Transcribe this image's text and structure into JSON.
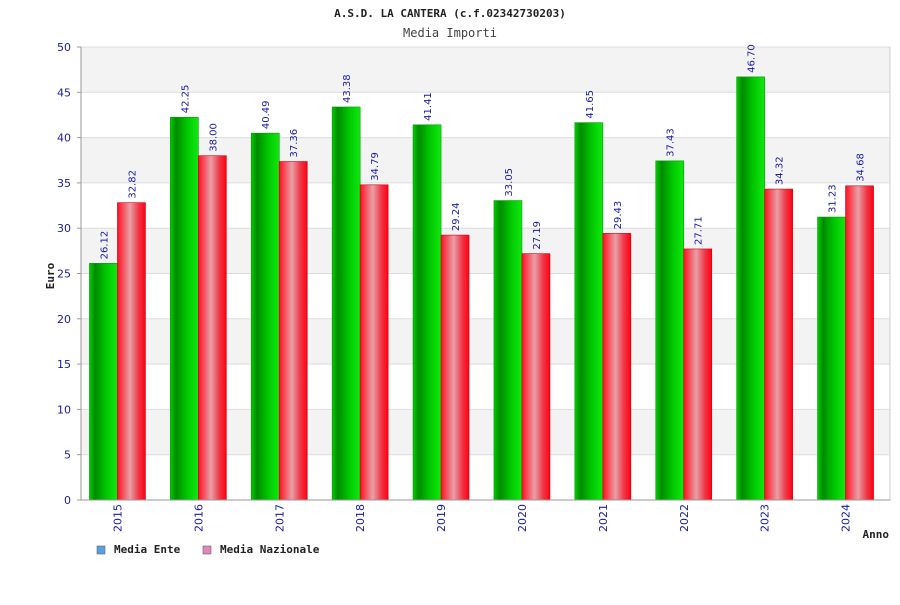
{
  "chart_data": {
    "type": "bar",
    "title": "A.S.D. LA CANTERA (c.f.02342730203)",
    "subtitle": "Media Importi",
    "xlabel": "Anno",
    "ylabel": "Euro",
    "ylim": [
      0,
      50
    ],
    "yticks": [
      0,
      5,
      10,
      15,
      20,
      25,
      30,
      35,
      40,
      45,
      50
    ],
    "categories": [
      "2015",
      "2016",
      "2017",
      "2018",
      "2019",
      "2020",
      "2021",
      "2022",
      "2023",
      "2024"
    ],
    "series": [
      {
        "name": "Media Ente",
        "values": [
          26.12,
          42.25,
          40.49,
          43.38,
          41.41,
          33.05,
          41.65,
          37.43,
          46.7,
          31.23
        ],
        "labels": [
          "26.12",
          "42.25",
          "40.49",
          "43.38",
          "41.41",
          "33.05",
          "41.65",
          "37.43",
          "46.70",
          "31.23"
        ],
        "color": "#00b400",
        "legend_color": "#5aa0e0"
      },
      {
        "name": "Media Nazionale",
        "values": [
          32.82,
          38.0,
          37.36,
          34.79,
          29.24,
          27.19,
          29.43,
          27.71,
          34.32,
          34.68
        ],
        "labels": [
          "32.82",
          "38.00",
          "37.36",
          "34.79",
          "29.24",
          "27.19",
          "29.43",
          "27.71",
          "34.32",
          "34.68"
        ],
        "color": "#ee1122",
        "legend_color": "#e088b8"
      }
    ],
    "legend_position": "bottom-left",
    "grid": true
  }
}
